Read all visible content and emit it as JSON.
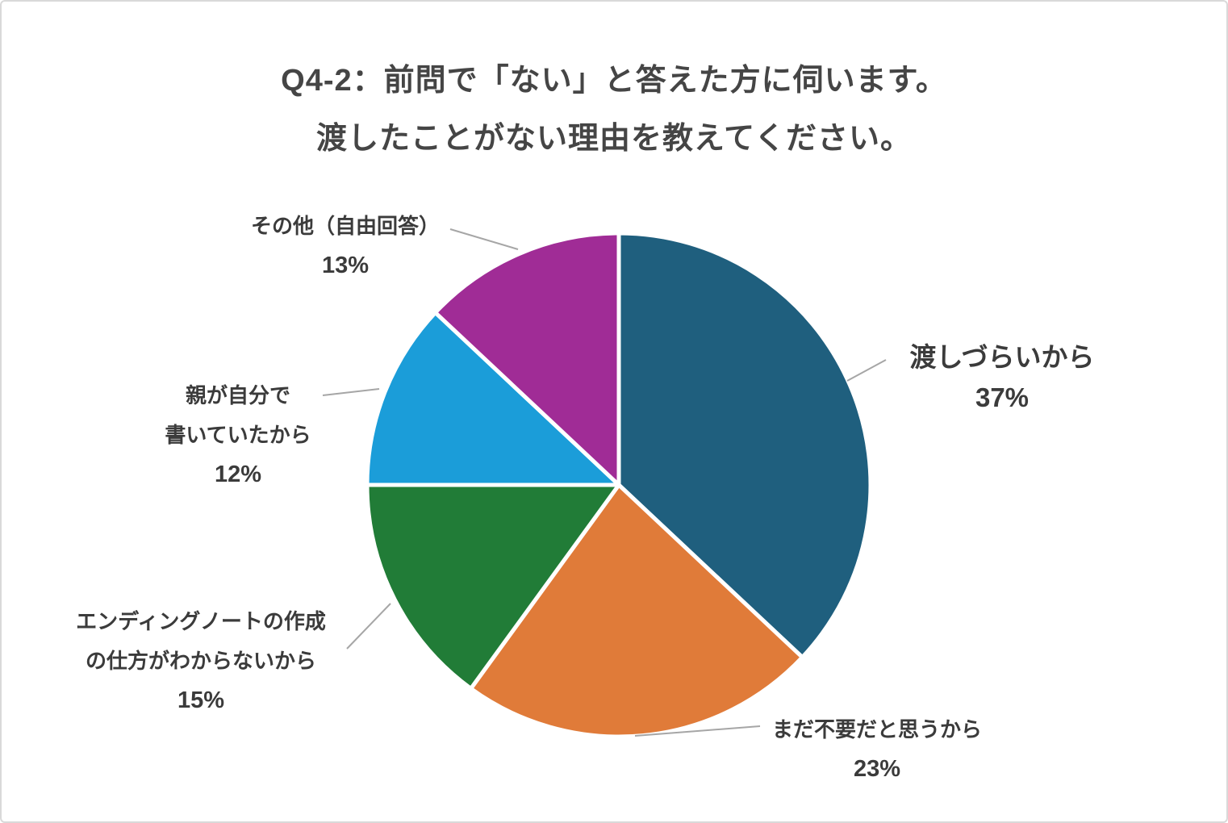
{
  "title": {
    "line1": "Q4-2：前問で「ない」と答えた方に伺います。",
    "line2": "渡したことがない理由を教えてください。"
  },
  "chart_data": {
    "type": "pie",
    "title": "Q4-2：前問で「ない」と答えた方に伺います。渡したことがない理由を教えてください。",
    "categories": [
      "渡しづらいから",
      "まだ不要だと思うから",
      "エンディングノートの作成の仕方がわからないから",
      "親が自分で書いていたから",
      "その他（自由回答）"
    ],
    "values": [
      37,
      23,
      15,
      12,
      13
    ],
    "unit": "%",
    "colors": [
      "#1f5f7e",
      "#e07b39",
      "#217c37",
      "#1b9dd9",
      "#a02c96"
    ],
    "start_angle": "top",
    "direction": "clockwise",
    "slice_border_color": "#ffffff",
    "leader_line_color": "#a6a6a6",
    "labels_position": "outside",
    "labels": [
      {
        "lines": [
          "渡しづらいから"
        ],
        "pct": "37%"
      },
      {
        "lines": [
          "まだ不要だと思うから"
        ],
        "pct": "23%"
      },
      {
        "lines": [
          "エンディングノートの作成",
          "の仕方がわからないから"
        ],
        "pct": "15%"
      },
      {
        "lines": [
          "親が自分で",
          "書いていたから"
        ],
        "pct": "12%"
      },
      {
        "lines": [
          "その他（自由回答）"
        ],
        "pct": "13%"
      }
    ]
  }
}
